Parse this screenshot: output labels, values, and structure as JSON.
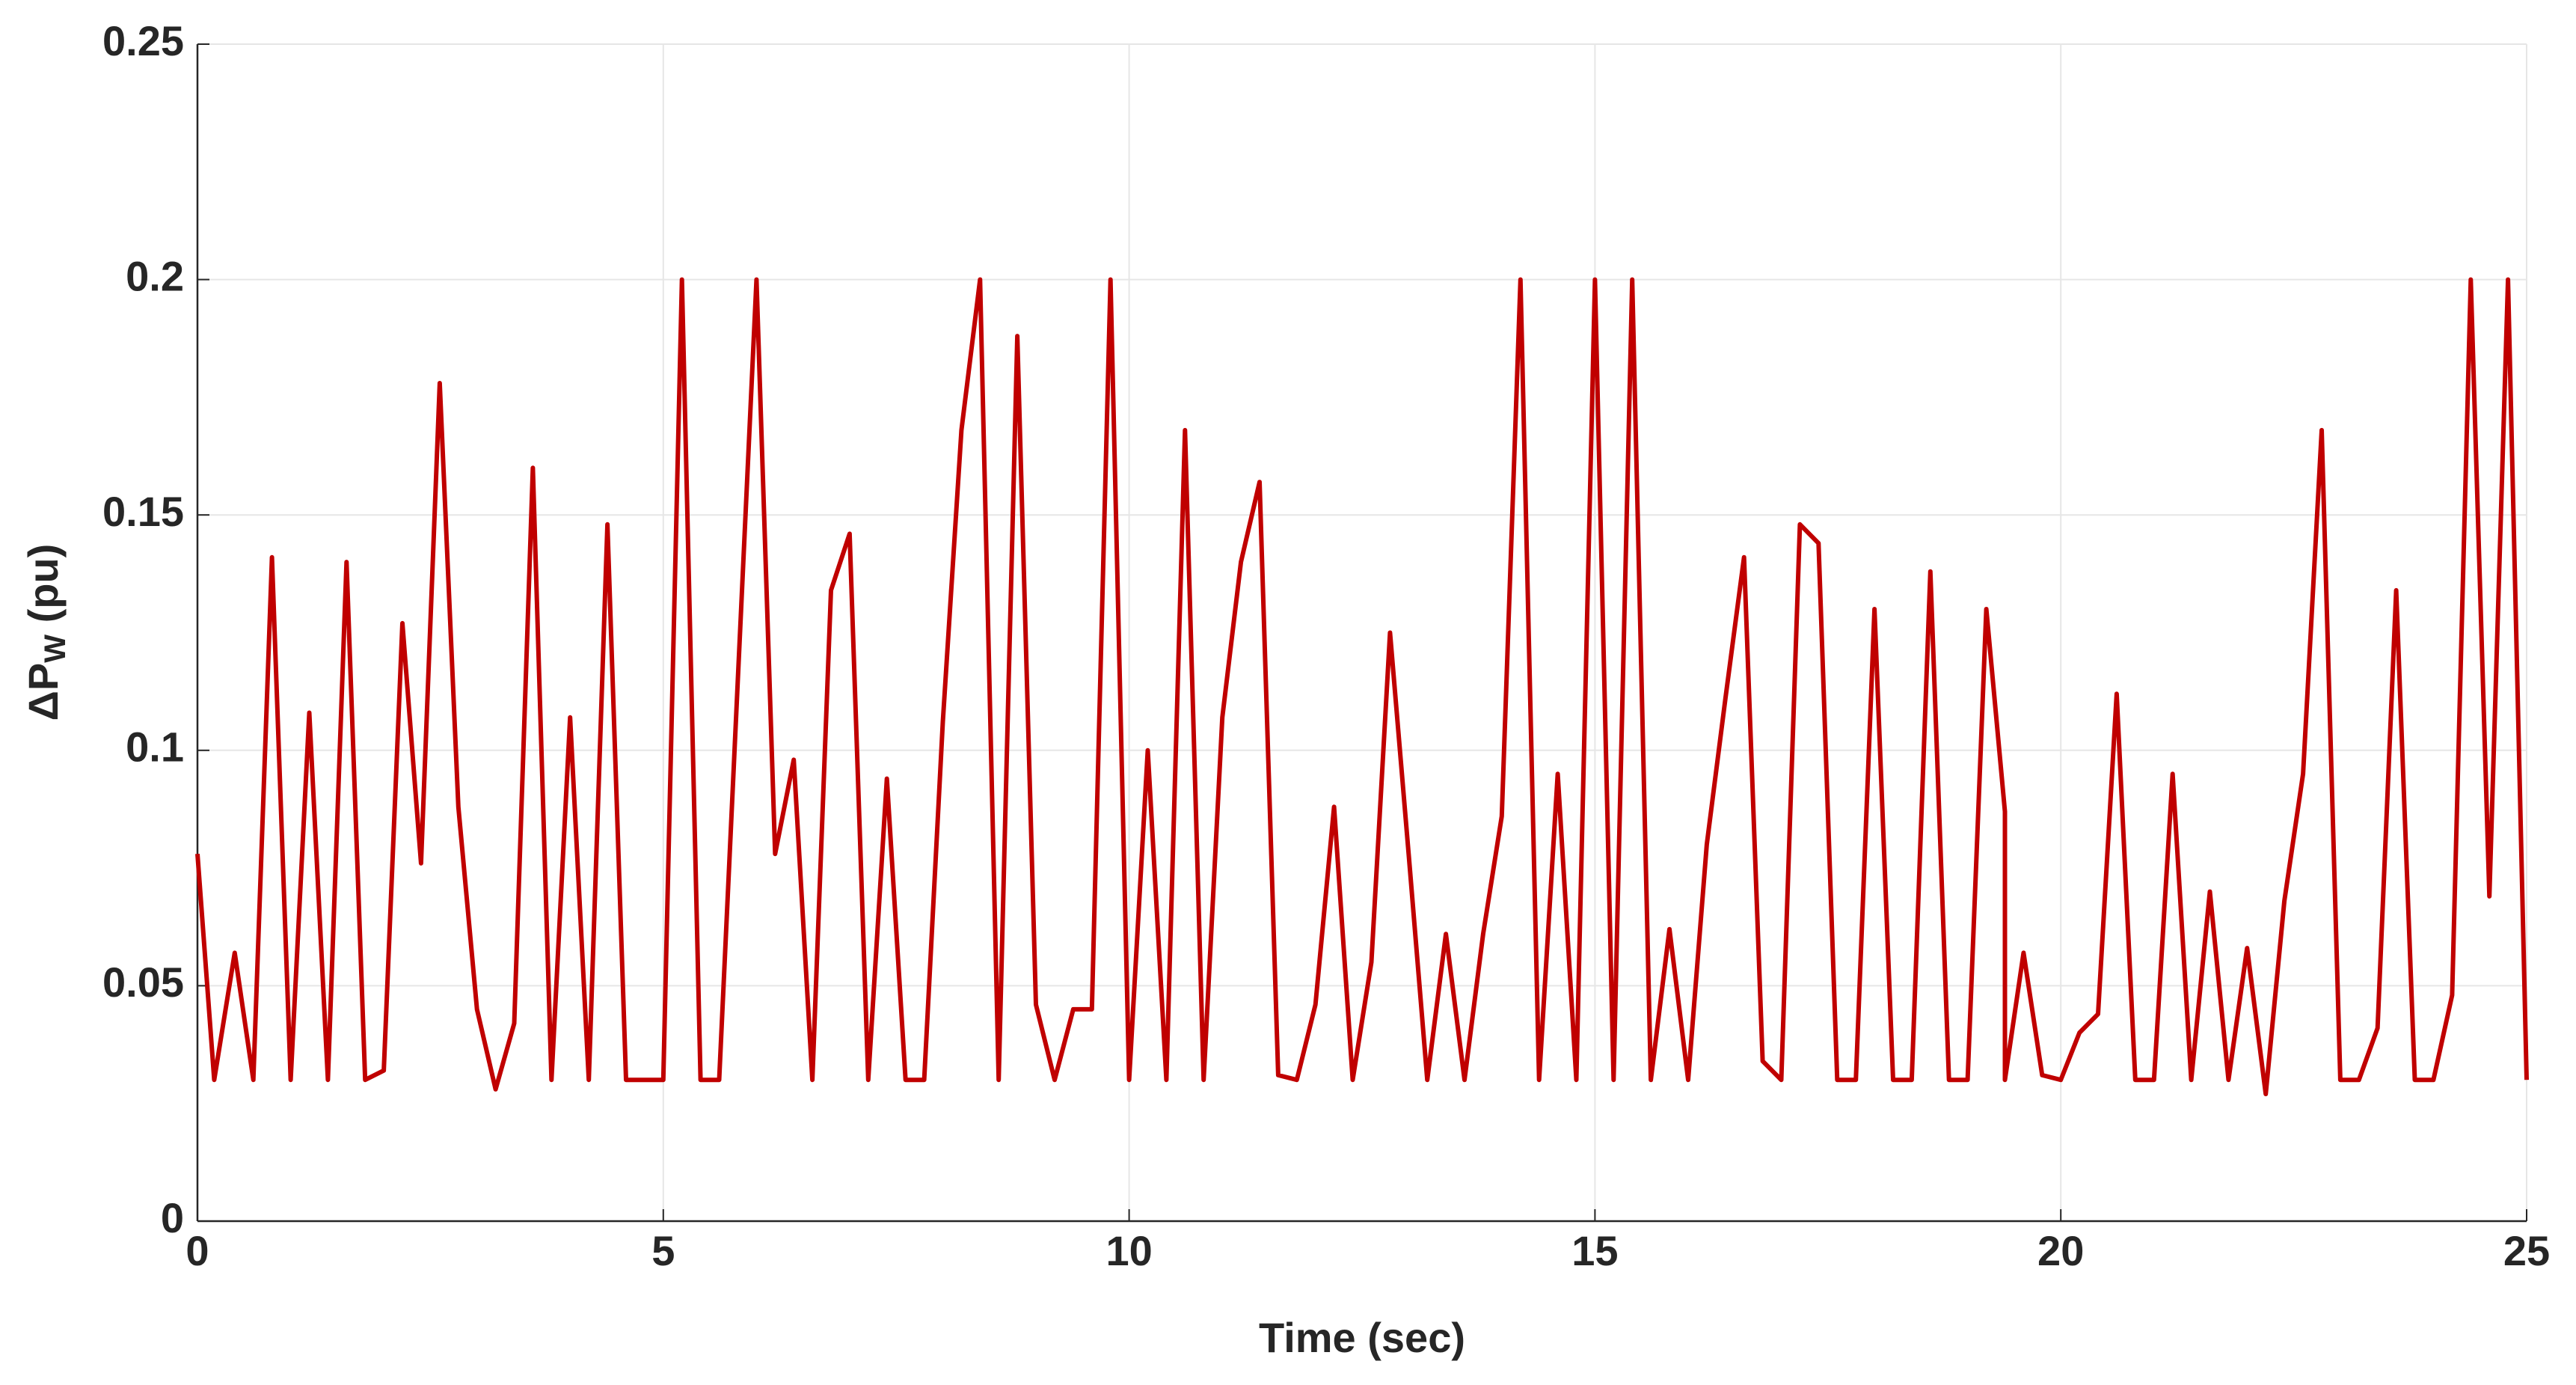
{
  "chart_data": {
    "type": "line",
    "x_label": "Time (sec)",
    "y_label": {
      "main": "ΔP",
      "sub": "W",
      "suffix": " (pu)"
    },
    "color": "#c00000",
    "grid": true,
    "xlim": [
      0,
      25
    ],
    "xticks": [
      0,
      5,
      10,
      15,
      20,
      25
    ],
    "ylim": [
      0,
      0.25
    ],
    "yticks": [
      0,
      0.05,
      0.1,
      0.15,
      0.2,
      0.25
    ],
    "x": [
      0,
      0.18,
      0.4,
      0.6,
      0.8,
      1.0,
      1.2,
      1.4,
      1.6,
      1.8,
      2.0,
      2.2,
      2.4,
      2.6,
      2.8,
      3.0,
      3.2,
      3.4,
      3.6,
      3.8,
      4.0,
      4.2,
      4.4,
      4.6,
      5.0,
      5.2,
      5.4,
      5.6,
      6.0,
      6.2,
      6.4,
      6.6,
      6.8,
      7.0,
      7.2,
      7.4,
      7.6,
      7.8,
      8.0,
      8.2,
      8.4,
      8.6,
      8.8,
      9.0,
      9.2,
      9.4,
      9.6,
      9.8,
      10.0,
      10.2,
      10.4,
      10.6,
      10.8,
      11.0,
      11.2,
      11.4,
      11.6,
      11.8,
      12.0,
      12.2,
      12.4,
      12.6,
      12.8,
      13.0,
      13.2,
      13.4,
      13.6,
      13.8,
      14.0,
      14.2,
      14.4,
      14.6,
      14.8,
      15.0,
      15.2,
      15.4,
      15.6,
      15.8,
      16.0,
      16.2,
      16.4,
      16.6,
      16.8,
      17.0,
      17.2,
      17.4,
      17.6,
      17.8,
      18.0,
      18.2,
      18.4,
      18.6,
      18.8,
      19.0,
      19.2,
      19.4,
      19.4,
      19.6,
      19.8,
      20.0,
      20.2,
      20.4,
      20.6,
      20.8,
      21.0,
      21.2,
      21.4,
      21.6,
      21.8,
      22.0,
      22.2,
      22.4,
      22.6,
      22.8,
      23.0,
      23.2,
      23.4,
      23.6,
      23.8,
      24.0,
      24.2,
      24.4,
      24.6,
      24.8,
      25.0
    ],
    "values": [
      0.078,
      0.03,
      0.057,
      0.03,
      0.141,
      0.03,
      0.108,
      0.03,
      0.14,
      0.03,
      0.032,
      0.127,
      0.076,
      0.178,
      0.088,
      0.045,
      0.028,
      0.042,
      0.16,
      0.03,
      0.107,
      0.03,
      0.148,
      0.03,
      0.03,
      0.2,
      0.03,
      0.03,
      0.2,
      0.078,
      0.098,
      0.03,
      0.134,
      0.146,
      0.03,
      0.094,
      0.03,
      0.03,
      0.106,
      0.168,
      0.2,
      0.03,
      0.188,
      0.046,
      0.03,
      0.045,
      0.045,
      0.2,
      0.03,
      0.1,
      0.03,
      0.168,
      0.03,
      0.107,
      0.14,
      0.157,
      0.031,
      0.03,
      0.046,
      0.088,
      0.03,
      0.055,
      0.125,
      0.078,
      0.03,
      0.061,
      0.03,
      0.061,
      0.086,
      0.2,
      0.03,
      0.095,
      0.03,
      0.2,
      0.03,
      0.2,
      0.03,
      0.062,
      0.03,
      0.08,
      0.111,
      0.141,
      0.034,
      0.03,
      0.148,
      0.144,
      0.03,
      0.03,
      0.13,
      0.03,
      0.03,
      0.138,
      0.03,
      0.03,
      0.13,
      0.087,
      0.03,
      0.057,
      0.031,
      0.03,
      0.04,
      0.044,
      0.112,
      0.03,
      0.03,
      0.095,
      0.03,
      0.07,
      0.03,
      0.058,
      0.027,
      0.068,
      0.095,
      0.168,
      0.03,
      0.03,
      0.041,
      0.134,
      0.03,
      0.03,
      0.048,
      0.2,
      0.069,
      0.2,
      0.03
    ]
  }
}
